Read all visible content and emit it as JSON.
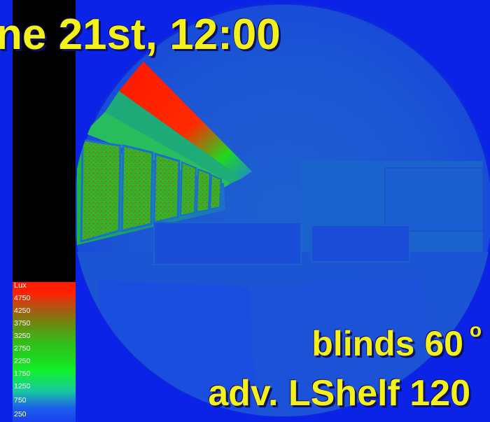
{
  "title": "ne 21st, 12:00",
  "caption": {
    "line1": "blinds 60",
    "degree": "o",
    "line2": "adv. LShelf 120"
  },
  "legend": {
    "unit": "Lux",
    "ticks": [
      "4750",
      "4250",
      "3750",
      "3250",
      "2750",
      "2250",
      "1750",
      "1250",
      "750",
      "250"
    ]
  },
  "colors": {
    "background": "#0a23e6",
    "title_text": "#f2f21a",
    "high": "#ff1a00",
    "mid": "#18e020",
    "low": "#1a40f0"
  }
}
